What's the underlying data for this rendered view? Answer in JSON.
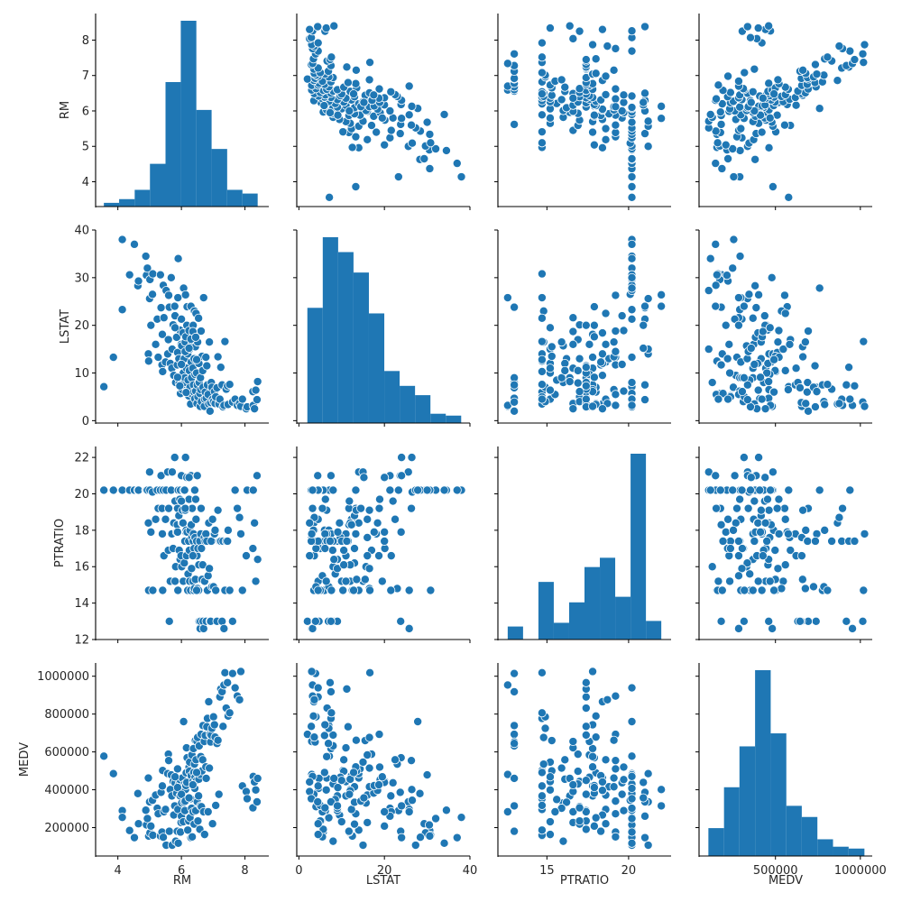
{
  "chart_data": {
    "type": "pairplot",
    "title": "",
    "variables": [
      "RM",
      "LSTAT",
      "PTRATIO",
      "MEDV"
    ],
    "color": "#1f77b4",
    "marker_edge_color": "#ffffff",
    "grid": false,
    "axes": {
      "RM": {
        "label": "RM",
        "range": [
          3.3,
          8.75
        ],
        "ticks": [
          4,
          5,
          6,
          7,
          8
        ],
        "row_tick_labels": [
          "4",
          "5",
          "6",
          "7",
          "8"
        ],
        "col_ticks": [
          4,
          6,
          8
        ],
        "col_tick_labels": [
          "4",
          "6",
          "8"
        ]
      },
      "LSTAT": {
        "label": "LSTAT",
        "range": [
          -0.5,
          40.0
        ],
        "ticks": [
          0,
          10,
          20,
          30,
          40
        ],
        "row_tick_labels": [
          "0",
          "10",
          "20",
          "30",
          "40"
        ],
        "col_ticks": [
          0,
          20,
          40
        ],
        "col_tick_labels": [
          "0",
          "20",
          "40"
        ]
      },
      "PTRATIO": {
        "label": "PTRATIO",
        "range": [
          12.0,
          22.6
        ],
        "ticks": [
          12,
          14,
          16,
          18,
          20,
          22
        ],
        "row_tick_labels": [
          "12",
          "14",
          "16",
          "18",
          "20",
          "22"
        ],
        "col_ticks": [
          15,
          20
        ],
        "col_tick_labels": [
          "15",
          "20"
        ]
      },
      "MEDV": {
        "label": "MEDV",
        "range": [
          50000,
          1070000
        ],
        "ticks": [
          200000,
          400000,
          600000,
          800000,
          1000000
        ],
        "row_tick_labels": [
          "200000",
          "400000",
          "600000",
          "800000",
          "1000000"
        ],
        "col_ticks": [
          500000,
          1000000
        ],
        "col_tick_labels": [
          "500000",
          "1000000"
        ]
      }
    },
    "histograms": {
      "RM": {
        "bin_edges": [
          3.56,
          4.04,
          4.53,
          5.01,
          5.5,
          5.98,
          6.47,
          6.95,
          7.44,
          7.92,
          8.4
        ],
        "relative_heights": [
          0.02,
          0.04,
          0.09,
          0.23,
          0.67,
          1.0,
          0.52,
          0.31,
          0.09,
          0.07
        ]
      },
      "LSTAT": {
        "bin_edges": [
          1.98,
          5.58,
          9.18,
          12.77,
          16.37,
          19.97,
          23.56,
          27.16,
          30.76,
          34.35,
          37.95
        ],
        "relative_heights": [
          0.62,
          1.0,
          0.92,
          0.81,
          0.59,
          0.28,
          0.2,
          0.15,
          0.05,
          0.04
        ]
      },
      "PTRATIO": {
        "bin_edges": [
          12.6,
          13.54,
          14.48,
          15.42,
          16.36,
          17.3,
          18.24,
          19.18,
          20.12,
          21.06,
          22.0
        ],
        "relative_heights": [
          0.07,
          0.0,
          0.31,
          0.09,
          0.2,
          0.39,
          0.44,
          0.23,
          1.0,
          0.1
        ]
      },
      "MEDV": {
        "bin_edges": [
          105000,
          197000,
          288000,
          380000,
          472000,
          564000,
          655000,
          747000,
          839000,
          931000,
          1024000
        ],
        "relative_heights": [
          0.15,
          0.37,
          0.59,
          1.0,
          0.66,
          0.27,
          0.21,
          0.09,
          0.05,
          0.04
        ]
      }
    },
    "points": {
      "RM": [
        3.56,
        3.86,
        4.14,
        4.14,
        4.37,
        4.52,
        4.63,
        4.65,
        4.88,
        4.9,
        4.93,
        4.96,
        4.97,
        5.0,
        5.01,
        5.04,
        5.09,
        5.1,
        5.19,
        5.24,
        5.27,
        5.34,
        5.36,
        5.39,
        5.4,
        5.41,
        5.43,
        5.45,
        5.5,
        5.52,
        5.57,
        5.59,
        5.6,
        5.62,
        5.65,
        5.68,
        5.7,
        5.71,
        5.74,
        5.76,
        5.79,
        5.8,
        5.82,
        5.85,
        5.87,
        5.88,
        5.89,
        5.9,
        5.92,
        5.93,
        5.95,
        5.96,
        5.97,
        5.99,
        6.0,
        6.01,
        6.02,
        6.03,
        6.05,
        6.06,
        6.07,
        6.09,
        6.1,
        6.11,
        6.12,
        6.13,
        6.14,
        6.15,
        6.16,
        6.17,
        6.18,
        6.2,
        6.21,
        6.23,
        6.24,
        6.25,
        6.26,
        6.27,
        6.29,
        6.3,
        6.31,
        6.32,
        6.33,
        6.34,
        6.36,
        6.37,
        6.38,
        6.39,
        6.4,
        6.41,
        6.42,
        6.43,
        6.44,
        6.45,
        6.46,
        6.48,
        6.49,
        6.5,
        6.51,
        6.52,
        6.54,
        6.55,
        6.56,
        6.58,
        6.59,
        6.6,
        6.61,
        6.62,
        6.63,
        6.65,
        6.67,
        6.68,
        6.7,
        6.72,
        6.73,
        6.75,
        6.77,
        6.78,
        6.8,
        6.82,
        6.84,
        6.86,
        6.88,
        6.9,
        6.92,
        6.94,
        6.96,
        6.98,
        7.01,
        7.04,
        7.06,
        7.08,
        7.12,
        7.15,
        7.18,
        7.21,
        7.24,
        7.28,
        7.31,
        7.34,
        7.37,
        7.41,
        7.45,
        7.47,
        7.52,
        7.61,
        7.69,
        7.76,
        7.83,
        7.87,
        7.92,
        8.04,
        8.07,
        8.25,
        8.26,
        8.3,
        8.34,
        8.38,
        8.4,
        5.88,
        6.0,
        6.12,
        6.24,
        6.36,
        6.48,
        5.8,
        5.95,
        6.15,
        6.3,
        6.45,
        6.6,
        6.2,
        6.05,
        6.35,
        6.5
      ],
      "LSTAT": [
        7.12,
        13.3,
        23.3,
        38.0,
        30.6,
        37.0,
        28.3,
        29.3,
        34.5,
        30.5,
        32.0,
        14.0,
        12.5,
        25.6,
        29.6,
        20.0,
        26.5,
        30.8,
        16.0,
        21.3,
        13.3,
        30.6,
        23.7,
        11.7,
        18.1,
        10.3,
        28.4,
        21.6,
        12.3,
        27.3,
        14.0,
        17.0,
        26.3,
        23.8,
        12.0,
        30.0,
        11.0,
        15.0,
        20.1,
        9.5,
        24.0,
        22.0,
        8.0,
        17.5,
        11.7,
        14.3,
        25.8,
        34.0,
        13.0,
        7.9,
        19.0,
        9.0,
        5.7,
        16.0,
        21.3,
        15.7,
        12.0,
        6.5,
        18.4,
        10.0,
        27.8,
        13.0,
        8.0,
        9.0,
        16.5,
        26.4,
        17.6,
        6.0,
        11.0,
        20.0,
        23.9,
        14.0,
        8.5,
        5.2,
        18.9,
        10.5,
        15.0,
        7.0,
        3.5,
        24.0,
        12.3,
        9.0,
        16.0,
        5.5,
        11.0,
        20.0,
        7.5,
        6.0,
        13.0,
        23.0,
        4.6,
        9.7,
        15.5,
        6.2,
        22.5,
        10.0,
        3.6,
        7.5,
        16.5,
        5.0,
        21.5,
        12.0,
        8.0,
        5.7,
        3.0,
        9.0,
        6.5,
        18.8,
        4.0,
        13.5,
        10.5,
        7.0,
        25.8,
        3.0,
        4.5,
        6.0,
        13.3,
        4.7,
        11.5,
        7.5,
        5.5,
        3.5,
        16.5,
        2.0,
        3.8,
        8.0,
        7.0,
        4.5,
        4.0,
        6.1,
        3.6,
        5.0,
        6.9,
        13.4,
        3.5,
        4.5,
        11.2,
        7.5,
        2.9,
        3.2,
        16.6,
        6.6,
        7.3,
        3.4,
        7.6,
        3.9,
        4.5,
        3.2,
        3.6,
        3.0,
        4.5,
        2.5,
        2.9,
        6.1,
        3.2,
        2.5,
        6.4,
        4.4,
        8.2,
        9.1,
        11.8,
        14.5,
        15.2,
        18.7,
        12.8,
        19.5,
        7.3,
        5.9,
        17.1,
        17.5
      ],
      "PTRATIO": [
        20.2,
        20.2,
        20.2,
        20.2,
        20.2,
        20.2,
        20.2,
        20.2,
        20.2,
        20.2,
        20.2,
        18.4,
        14.7,
        21.2,
        20.2,
        17.9,
        20.1,
        14.7,
        18.6,
        20.2,
        19.2,
        20.2,
        21.0,
        19.2,
        17.8,
        14.7,
        20.2,
        16.6,
        18.6,
        20.2,
        21.2,
        16.9,
        19.2,
        13.0,
        15.2,
        20.2,
        17.8,
        21.2,
        17.0,
        18.4,
        22.0,
        19.6,
        16.0,
        17.9,
        18.3,
        19.2,
        14.7,
        20.2,
        18.8,
        16.9,
        19.7,
        16.4,
        20.2,
        16.6,
        21.0,
        16.0,
        18.4,
        19.1,
        18.4,
        15.2,
        20.2,
        16.2,
        20.2,
        17.4,
        19.1,
        22.0,
        17.9,
        18.0,
        16.6,
        20.9,
        17.9,
        14.7,
        15.6,
        17.4,
        19.7,
        16.9,
        15.2,
        18.0,
        14.7,
        21.0,
        18.3,
        15.9,
        17.6,
        19.2,
        15.2,
        17.4,
        17.8,
        14.7,
        17.0,
        14.8,
        20.2,
        17.6,
        15.3,
        19.7,
        18.6,
        17.4,
        16.6,
        21.0,
        14.8,
        17.0,
        14.7,
        16.1,
        13.0,
        17.4,
        12.6,
        13.0,
        17.8,
        19.2,
        17.0,
        15.3,
        16.1,
        13.0,
        12.6,
        17.6,
        15.2,
        17.4,
        17.8,
        13.0,
        17.4,
        14.7,
        15.5,
        18.4,
        15.9,
        13.0,
        13.0,
        17.4,
        14.9,
        18.6,
        14.9,
        17.8,
        18.0,
        14.7,
        13.0,
        19.1,
        17.4,
        17.4,
        17.4,
        13.0,
        17.4,
        12.6,
        14.7,
        17.4,
        17.4,
        18.0,
        14.7,
        13.0,
        20.2,
        19.2,
        18.7,
        17.8,
        14.7,
        16.6,
        20.2,
        17.0,
        20.2,
        18.4,
        15.2,
        21.0,
        16.4,
        17.9,
        19.6,
        19.2,
        20.9,
        16.6,
        14.7,
        15.2
      ],
      "MEDV": [
        577500,
        485100,
        289800,
        254100,
        184800,
        147000,
        380100,
        220500,
        291900,
        214200,
        247800,
        462000,
        155400,
        336000,
        172200,
        208000,
        344400,
        159600,
        371700,
        302400,
        273000,
        155400,
        386400,
        176400,
        420000,
        501900,
        149100,
        283500,
        296100,
        107100,
        485100,
        588000,
        554400,
        180600,
        401100,
        478800,
        367500,
        107100,
        444000,
        266700,
        315000,
        436800,
        128100,
        382200,
        180600,
        510300,
        296100,
        117600,
        415800,
        430500,
        453600,
        367500,
        176400,
        226800,
        260400,
        330000,
        394800,
        462000,
        396900,
        231000,
        760200,
        333900,
        430500,
        289800,
        415800,
        401100,
        422100,
        489300,
        621600,
        438900,
        569100,
        186900,
        348600,
        235200,
        519800,
        497700,
        546000,
        252000,
        352800,
        147000,
        474600,
        302400,
        583800,
        151200,
        443100,
        283500,
        617400,
        491400,
        218400,
        535500,
        407400,
        466200,
        660000,
        289800,
        558600,
        449400,
        655200,
        336000,
        676200,
        235200,
        367500,
        455700,
        632100,
        191100,
        480900,
        315000,
        575400,
        693000,
        310800,
        499800,
        558600,
        739200,
        283500,
        655200,
        163800,
        686700,
        520800,
        460200,
        732900,
        777000,
        283500,
        865200,
        514500,
        693000,
        652500,
        689100,
        724500,
        220500,
        785400,
        743400,
        678300,
        317100,
        644700,
        661500,
        375900,
        890400,
        932400,
        917700,
        735000,
        953400,
        1018500,
        831600,
        966000,
        789600,
        806400,
        1014300,
        938700,
        895000,
        875700,
        1024800,
        420000,
        390600,
        352800,
        304500,
        470400,
        441000,
        399000,
        336000,
        459900,
        411600,
        375900,
        340200,
        357000,
        426300,
        491400,
        468300
      ]
    }
  }
}
